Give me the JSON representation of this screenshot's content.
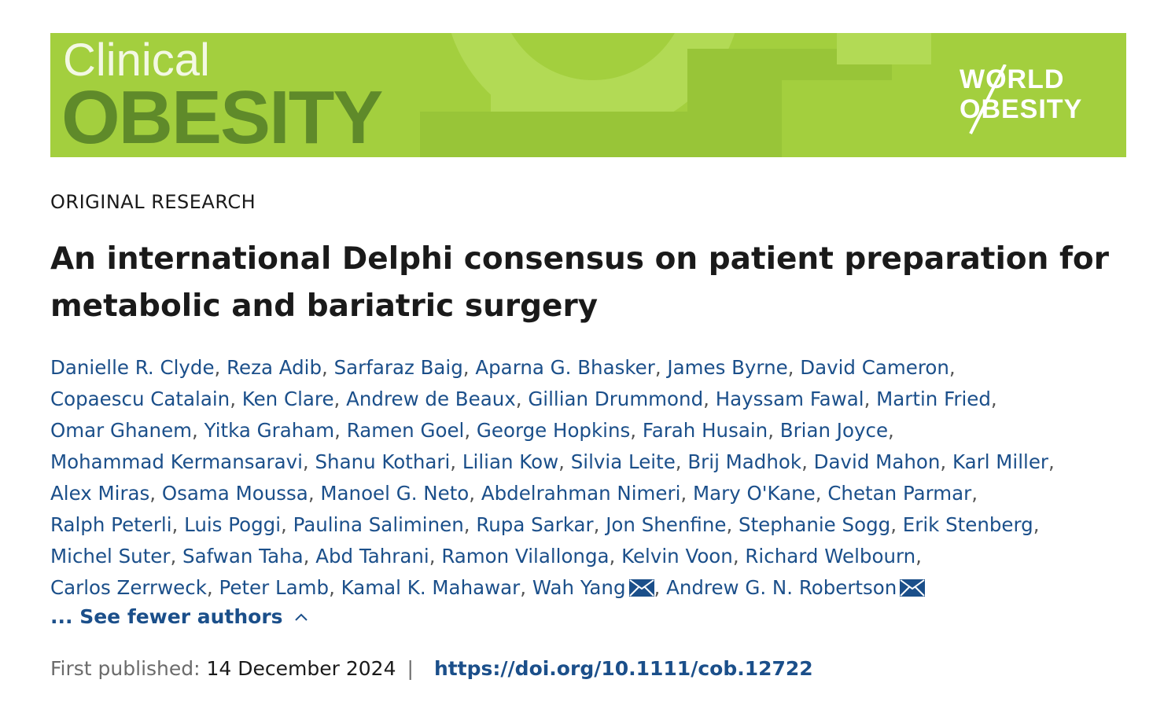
{
  "journal": {
    "name_line1": "Clinical",
    "name_line2": "OBESITY",
    "publisher_logo_line1": "WORLD",
    "publisher_logo_line2": "OBESITY",
    "banner_color": "#a3cf3e"
  },
  "article": {
    "category": "ORIGINAL RESEARCH",
    "title": "An international Delphi consensus on patient preparation for metabolic and bariatric surgery",
    "authors": [
      "Danielle R. Clyde",
      "Reza Adib",
      "Sarfaraz Baig",
      "Aparna G. Bhasker",
      "James Byrne",
      "David Cameron",
      "Copaescu Catalain",
      "Ken Clare",
      "Andrew de Beaux",
      "Gillian Drummond",
      "Hayssam Fawal",
      "Martin Fried",
      "Omar Ghanem",
      "Yitka Graham",
      "Ramen Goel",
      "George Hopkins",
      "Farah Husain",
      "Brian Joyce",
      "Mohammad Kermansaravi",
      "Shanu Kothari",
      "Lilian Kow",
      "Silvia Leite",
      "Brij Madhok",
      "David Mahon",
      "Karl Miller",
      "Alex Miras",
      "Osama Moussa",
      "Manoel G. Neto",
      "Abdelrahman Nimeri",
      "Mary O'Kane",
      "Chetan Parmar",
      "Ralph Peterli",
      "Luis Poggi",
      "Paulina Saliminen",
      "Rupa Sarkar",
      "Jon Shenfine",
      "Stephanie Sogg",
      "Erik Stenberg",
      "Michel Suter",
      "Safwan Taha",
      "Abd Tahrani",
      "Ramon Vilallonga",
      "Kelvin Voon",
      "Richard Welbourn",
      "Carlos Zerrweck",
      "Peter Lamb",
      "Kamal K. Mahawar",
      "Wah Yang",
      "Andrew G. N. Robertson"
    ],
    "corresponding_authors": [
      "Wah Yang",
      "Andrew G. N. Robertson"
    ],
    "see_fewer_label": "... See fewer authors",
    "first_published_label": "First published:",
    "first_published_date": "14 December 2024",
    "separator": "|",
    "doi": "https://doi.org/10.1111/cob.12722"
  }
}
